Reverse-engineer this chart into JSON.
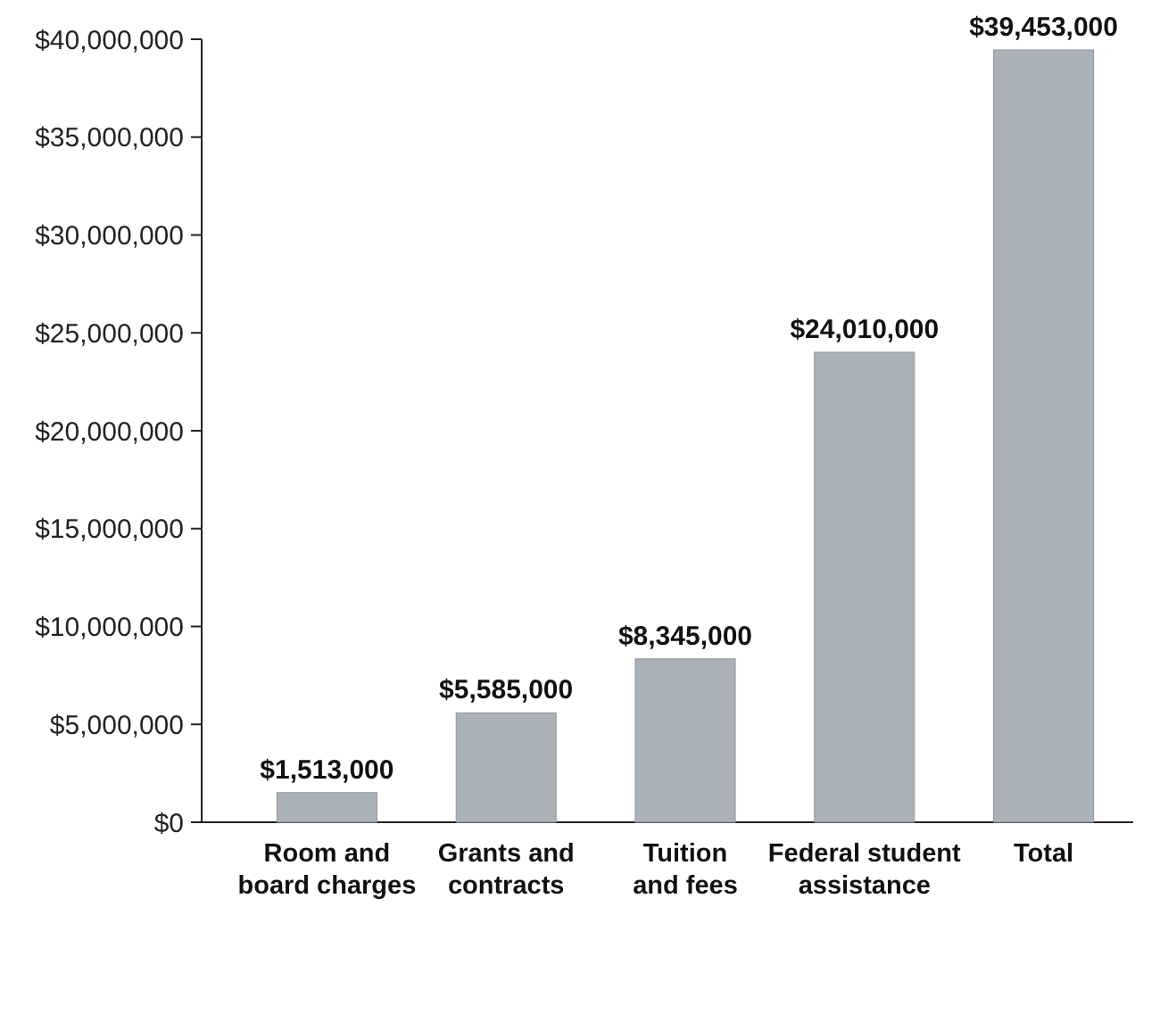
{
  "chart_data": {
    "type": "bar",
    "categories": [
      "Room and board charges",
      "Grants and contracts",
      "Tuition and fees",
      "Federal student assistance",
      "Total"
    ],
    "values": [
      1513000,
      5585000,
      8345000,
      24010000,
      39453000
    ],
    "value_labels": [
      "$1,513,000",
      "$5,585,000",
      "$8,345,000",
      "$24,010,000",
      "$39,453,000"
    ],
    "color": "#aab1b9",
    "ylim": [
      0,
      40000000
    ],
    "yticks": [
      {
        "value": 0,
        "label": "$0"
      },
      {
        "value": 5000000,
        "label": "$5,000,000"
      },
      {
        "value": 10000000,
        "label": "$10,000,000"
      },
      {
        "value": 15000000,
        "label": "$15,000,000"
      },
      {
        "value": 20000000,
        "label": "$20,000,000"
      },
      {
        "value": 25000000,
        "label": "$25,000,000"
      },
      {
        "value": 30000000,
        "label": "$30,000,000"
      },
      {
        "value": 35000000,
        "label": "$35,000,000"
      },
      {
        "value": 40000000,
        "label": "$40,000,000"
      }
    ],
    "grid": false
  }
}
